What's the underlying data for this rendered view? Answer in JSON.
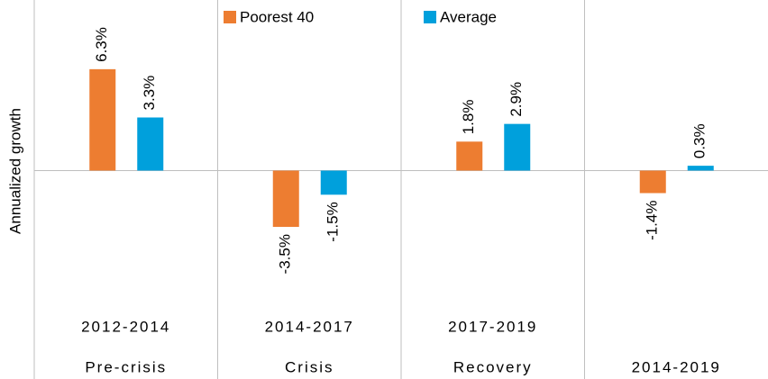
{
  "chart_data": {
    "type": "bar",
    "y_label": "Annualized growth",
    "categories": [
      "Pre-crisis",
      "Crisis",
      "Recovery",
      "2014-2019"
    ],
    "category_periods": [
      "2012-2014",
      "2014-2017",
      "2017-2019",
      null
    ],
    "series": [
      {
        "name": "Poorest 40",
        "color": "#ed7d31",
        "values": [
          6.3,
          -3.5,
          1.8,
          -1.4
        ],
        "value_labels": [
          "6.3%",
          "-3.5%",
          "1.8%",
          "-1.4%"
        ]
      },
      {
        "name": "Average",
        "color": "#00a0dc",
        "values": [
          3.3,
          -1.5,
          2.9,
          0.3
        ],
        "value_labels": [
          "3.3%",
          "-1.5%",
          "2.9%",
          "0.3%"
        ]
      }
    ],
    "ylim": [
      -8.7,
      10.6
    ]
  }
}
